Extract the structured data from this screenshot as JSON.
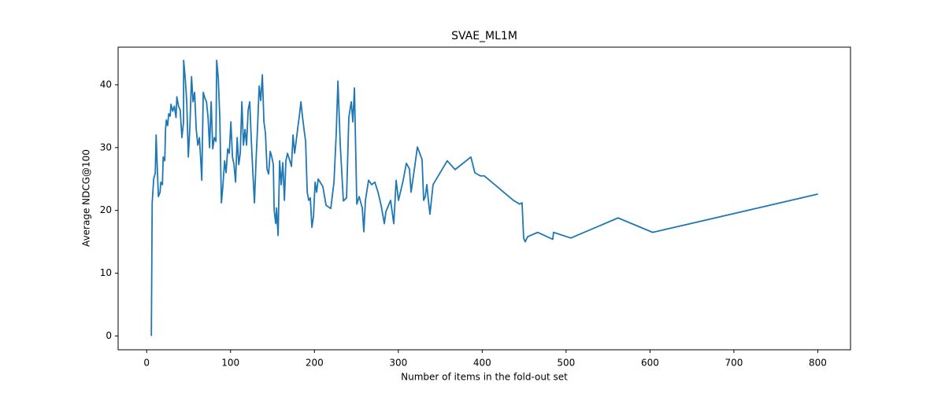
{
  "chart_data": {
    "type": "line",
    "title": "SVAE_ML1M",
    "x_label": "Number of items in the fold-out set",
    "y_label": "Average NDCG@100",
    "x": [
      5.6,
      6.6,
      8.4,
      10.3,
      11.3,
      12.2,
      14,
      16,
      16.9,
      18.8,
      19.7,
      21.6,
      22.5,
      23.5,
      25,
      26.3,
      28,
      29,
      31,
      33,
      35,
      36,
      38,
      40,
      42,
      44,
      44.1,
      46,
      47.8,
      49.7,
      51.6,
      53.5,
      55.3,
      57.2,
      59.1,
      61,
      62.9,
      64.7,
      65.7,
      67.5,
      69.4,
      71.3,
      73.2,
      75,
      76.9,
      78.8,
      80.7,
      82.6,
      83.5,
      85.4,
      87.2,
      89.1,
      91,
      92.9,
      94.7,
      96.6,
      98.5,
      100.4,
      102.3,
      104.1,
      106,
      107.9,
      109.8,
      111.6,
      113.5,
      115.4,
      117.3,
      119.1,
      121,
      122.9,
      124.8,
      126.6,
      128.5,
      130.4,
      132.3,
      134.1,
      136,
      137.9,
      139.8,
      141.6,
      143.5,
      145.4,
      147.3,
      149.2,
      151,
      152,
      153.9,
      154.8,
      156.7,
      158.5,
      160.4,
      162.3,
      164.2,
      166,
      167.9,
      170.7,
      172.6,
      174.5,
      176.4,
      178.2,
      180.1,
      182,
      183.9,
      185.7,
      187.6,
      189.5,
      191.4,
      193.2,
      195.1,
      197,
      198.9,
      200.8,
      202.6,
      204.5,
      210,
      213.9,
      219.5,
      223.3,
      226,
      228,
      230.8,
      234.5,
      238.3,
      241,
      243.9,
      245.8,
      247.7,
      250.5,
      253.3,
      257,
      258.9,
      260.8,
      264.5,
      268.3,
      272,
      275.8,
      279.5,
      283.3,
      285.2,
      290.8,
      294.6,
      297.4,
      300.2,
      305.8,
      309.6,
      313.3,
      315.2,
      319.9,
      322.7,
      328.3,
      330.2,
      332.1,
      334,
      335.8,
      337.7,
      341.4,
      358.3,
      367.7,
      386.5,
      391.2,
      397.7,
      402.4,
      437.2,
      444.7,
      447.5,
      449.4,
      451.2,
      454.1,
      466.2,
      484.1,
      485,
      505.6,
      561.9,
      603.2,
      800.2
    ],
    "series": [
      {
        "name": "SVAE_ML1M",
        "color": "#1f77b4",
        "values": [
          0,
          21.2,
          25,
          26,
          32,
          28.5,
          22.2,
          22.9,
          24.5,
          24.1,
          28.5,
          27.9,
          32.9,
          34.4,
          33.5,
          35.4,
          35,
          36.9,
          35.8,
          36.6,
          34.8,
          38.1,
          36.6,
          36,
          31.6,
          34.1,
          43.9,
          41,
          37.3,
          28.5,
          33.5,
          41.3,
          37.3,
          38.8,
          32.9,
          30.4,
          31.6,
          27.5,
          24.8,
          38.8,
          37.9,
          37.3,
          34.8,
          30,
          37.3,
          29.8,
          31.6,
          31,
          43.9,
          41,
          34.8,
          21.2,
          24.1,
          27.9,
          26,
          29.8,
          29.1,
          34.1,
          28.5,
          27.3,
          24.5,
          31.6,
          27.3,
          29.1,
          37.3,
          30.4,
          32.9,
          30.4,
          36,
          37.3,
          31,
          26,
          21.2,
          27.9,
          33.5,
          39.8,
          37.5,
          41.6,
          34.1,
          32.3,
          26.6,
          25.8,
          29.4,
          28.5,
          27.3,
          20,
          17.9,
          20.4,
          16,
          27.9,
          24.1,
          27.6,
          21.6,
          27.9,
          29.1,
          27.9,
          27,
          32,
          29.1,
          31,
          33.1,
          35,
          37.3,
          35,
          32.9,
          31,
          22.9,
          21.6,
          22,
          17.3,
          19.1,
          24.5,
          22.9,
          25,
          23.8,
          20.8,
          20.3,
          24.5,
          32.3,
          40.6,
          30.4,
          21.5,
          22,
          34.8,
          37.3,
          34.1,
          39.5,
          21,
          22.2,
          20.4,
          16.6,
          21.6,
          24.8,
          24.1,
          24.5,
          22.9,
          20.8,
          17.9,
          19.8,
          21.6,
          17.9,
          24.8,
          21.6,
          24.8,
          27.5,
          26.6,
          22.9,
          27.3,
          30.1,
          28.1,
          21.6,
          22.2,
          24.1,
          21.6,
          19.4,
          24.1,
          27.9,
          26.5,
          28.5,
          26,
          25.5,
          25.5,
          21.6,
          21,
          21.2,
          15.6,
          15,
          15.8,
          16.5,
          15.4,
          16.5,
          15.6,
          18.8,
          16.5,
          22.6
        ]
      }
    ],
    "xlim": [
      -34,
      839
    ],
    "ylim": [
      -2.2,
      46
    ],
    "xticks": [
      0,
      100,
      200,
      300,
      400,
      500,
      600,
      700,
      800
    ],
    "yticks": [
      0,
      10,
      20,
      30,
      40
    ]
  }
}
